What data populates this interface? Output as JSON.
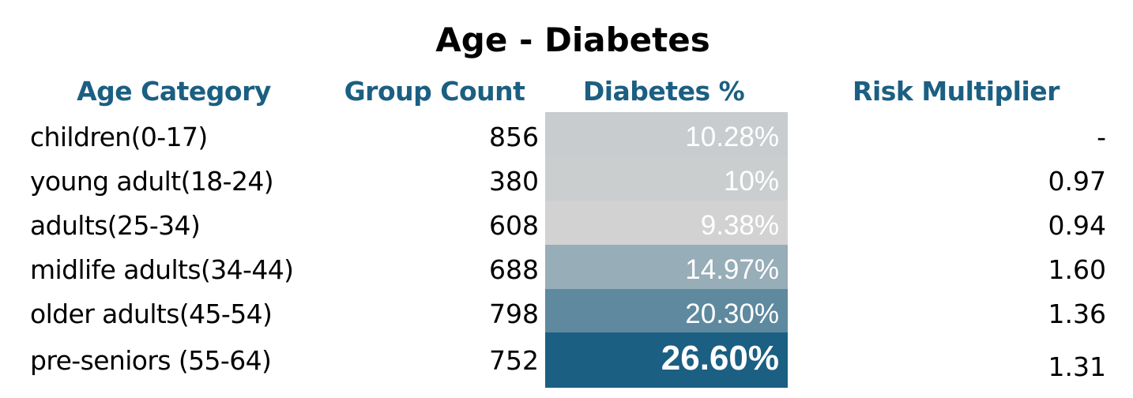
{
  "chart_data": {
    "type": "table",
    "title": "Age - Diabetes",
    "columns": [
      "Age Category",
      "Group Count",
      "Diabetes %",
      "Risk Multiplier"
    ],
    "rows": [
      {
        "category": "children(0-17)",
        "count": "856",
        "pct_label": "10.28%",
        "pct_value": 10.28,
        "risk": "-"
      },
      {
        "category": "young adult(18-24)",
        "count": "380",
        "pct_label": "10%",
        "pct_value": 10.0,
        "risk": "0.97"
      },
      {
        "category": "adults(25-34)",
        "count": "608",
        "pct_label": "9.38%",
        "pct_value": 9.38,
        "risk": "0.94"
      },
      {
        "category": "midlife adults(34-44)",
        "count": "688",
        "pct_label": "14.97%",
        "pct_value": 14.97,
        "risk": "1.60"
      },
      {
        "category": "older adults(45-54)",
        "count": "798",
        "pct_label": "20.30%",
        "pct_value": 20.3,
        "risk": "1.36"
      },
      {
        "category": "pre-seniors (55-64)",
        "count": "752",
        "pct_label": "26.60%",
        "pct_value": 26.6,
        "risk": "1.31",
        "emphasis": true
      }
    ],
    "color_scale": {
      "low": "#d2d2d2",
      "high": "#1b5f82"
    }
  },
  "colors": {
    "header": "#1b5f82",
    "pct_text": "#ffffff"
  }
}
